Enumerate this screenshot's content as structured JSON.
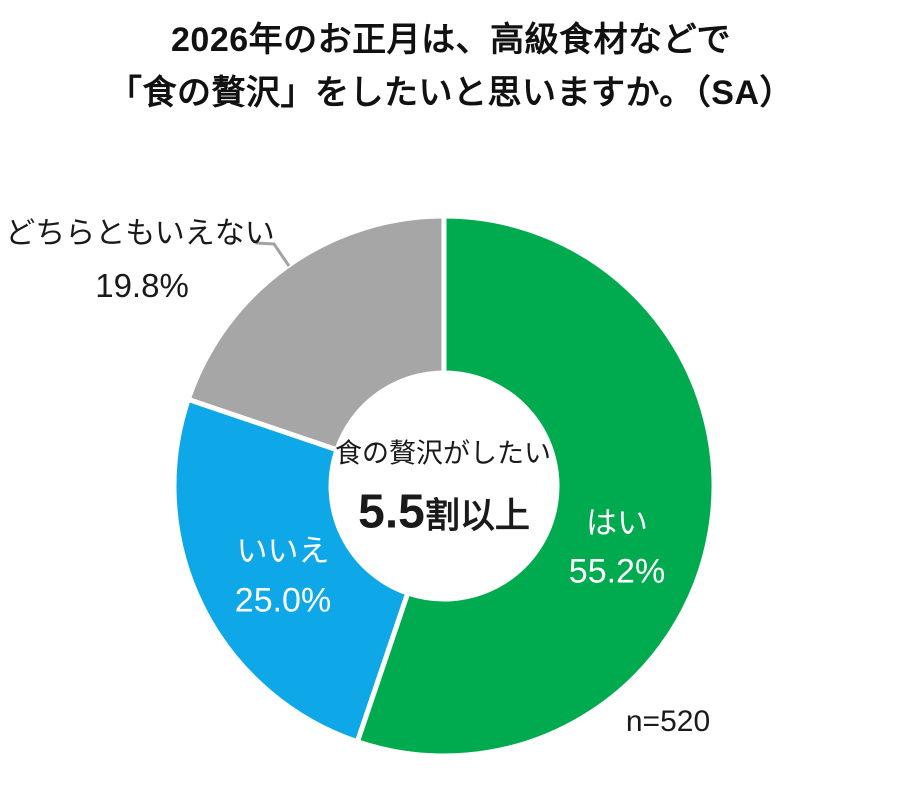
{
  "title": {
    "line1": "2026年のお正月は、高級食材などで",
    "line2": "「食の贅沢」をしたいと思いますか。（SA）"
  },
  "chart_data": {
    "type": "pie",
    "donut": true,
    "title": "2026年のお正月は、高級食材などで「食の贅沢」をしたいと思いますか。（SA）",
    "unit": "%",
    "sample_size_label": "n=520",
    "start_angle_deg": 0,
    "direction": "clockwise",
    "slices": [
      {
        "name": "yes",
        "label": "はい",
        "value": 55.2,
        "pct_label": "55.2%",
        "color": "#00AB4F"
      },
      {
        "name": "no",
        "label": "いいえ",
        "value": 25.0,
        "pct_label": "25.0%",
        "color": "#0EA7E7"
      },
      {
        "name": "neither",
        "label": "どちらともいえない",
        "value": 19.8,
        "pct_label": "19.8%",
        "color": "#A6A6A6"
      }
    ],
    "center_label": {
      "line1": "食の贅沢がしたい",
      "big": "5.5",
      "suffix": "割以上"
    },
    "colors": {
      "slice_gap": "#ffffff",
      "leader_line": "#A3A3A3",
      "title_text": "#111111",
      "label_on_slice": "#ffffff",
      "label_outside": "#1a1a1a"
    }
  }
}
